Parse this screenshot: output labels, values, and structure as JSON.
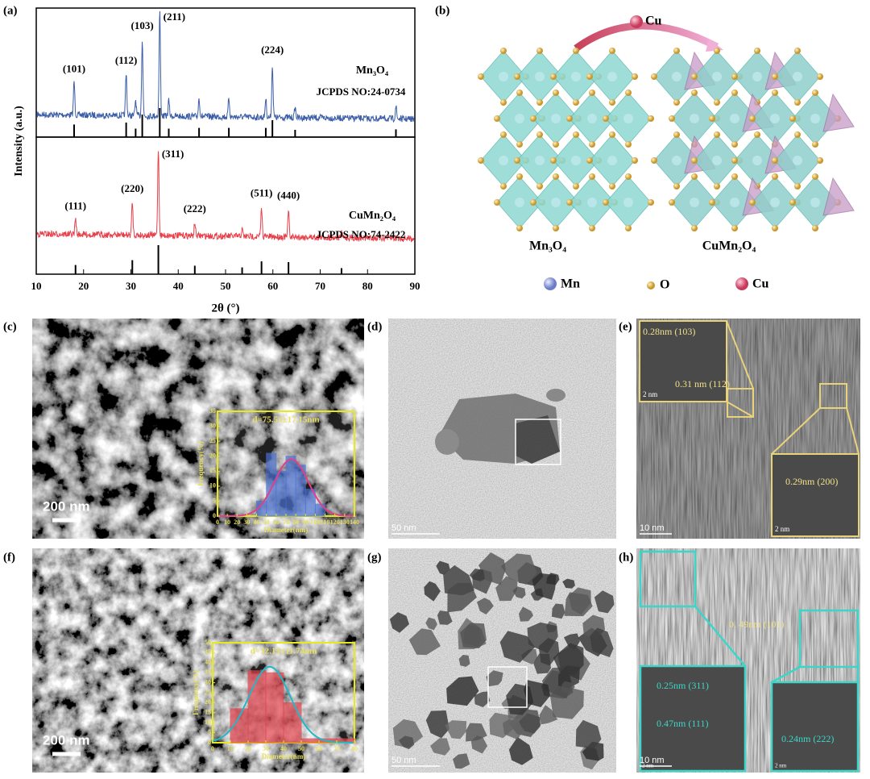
{
  "panels": {
    "a": {
      "label": "(a)",
      "xlabel": "2θ (°)",
      "ylabel": "Intensity (a.u.)",
      "xlim": [
        10,
        90
      ],
      "xticks": [
        10,
        20,
        30,
        40,
        50,
        60,
        70,
        80,
        90
      ],
      "patterns": [
        {
          "name": "Mn₃O₄",
          "card": "JCPDS NO:24-0734",
          "color": "#3c5ea8",
          "peaks": [
            {
              "label": "(101)",
              "x": 18.0,
              "intensity": 32
            },
            {
              "label": "(112)",
              "x": 29.0,
              "intensity": 40
            },
            {
              "label": null,
              "x": 31.0,
              "intensity": 15
            },
            {
              "label": "(103)",
              "x": 32.4,
              "intensity": 73
            },
            {
              "label": "(211)",
              "x": 36.1,
              "intensity": 100
            },
            {
              "label": null,
              "x": 38.0,
              "intensity": 15
            },
            {
              "label": null,
              "x": 44.4,
              "intensity": 18
            },
            {
              "label": null,
              "x": 50.7,
              "intensity": 18
            },
            {
              "label": null,
              "x": 58.5,
              "intensity": 18
            },
            {
              "label": "(224)",
              "x": 59.9,
              "intensity": 50
            },
            {
              "label": null,
              "x": 64.7,
              "intensity": 10
            },
            {
              "label": null,
              "x": 86.0,
              "intensity": 12
            }
          ]
        },
        {
          "name": "CuMn₂O₄",
          "card": "JCPDS NO:74-2422",
          "color": "#e8404a",
          "peaks": [
            {
              "label": "(111)",
              "x": 18.3,
              "intensity": 18
            },
            {
              "label": "(220)",
              "x": 30.3,
              "intensity": 38
            },
            {
              "label": "(311)",
              "x": 35.8,
              "intensity": 100
            },
            {
              "label": "(222)",
              "x": 43.5,
              "intensity": 15
            },
            {
              "label": null,
              "x": 53.5,
              "intensity": 8
            },
            {
              "label": "(511)",
              "x": 57.6,
              "intensity": 33
            },
            {
              "label": "(440)",
              "x": 63.3,
              "intensity": 30
            },
            {
              "label": null,
              "x": 74.5,
              "intensity": 5
            }
          ]
        }
      ]
    },
    "b": {
      "label": "(b)",
      "dopant": "Cu",
      "left": "Mn₃O₄",
      "right": "CuMn₂O₄",
      "legend": [
        "Mn",
        "O",
        "Cu"
      ]
    },
    "c": {
      "label": "(c)",
      "scale": "200 nm",
      "hist": {
        "title": "d=75.53±17.15nm",
        "ylabel": "Frequency(%)",
        "xlabel": "Diameter(nm)",
        "xlim": [
          0,
          140
        ],
        "xticks": [
          0,
          10,
          20,
          30,
          40,
          50,
          60,
          70,
          80,
          90,
          100,
          110,
          120,
          130,
          140
        ],
        "ylim": [
          0,
          35
        ],
        "yticks": [
          0,
          5,
          10,
          15,
          20,
          25,
          30,
          35
        ],
        "bins": [
          40,
          50,
          60,
          70,
          80,
          90,
          100,
          110
        ],
        "counts": [
          5,
          21,
          15,
          20,
          17,
          9,
          4
        ],
        "color": "#4a6fd0",
        "fit": {
          "mean": 75.53,
          "sd": 17.15,
          "peak": 19,
          "color": "#e0408a"
        }
      }
    },
    "d": {
      "label": "(d)",
      "scale": "50 nm"
    },
    "e": {
      "label": "(e)",
      "insets": [
        "0.28nm (103)",
        "0.31 nm (112)",
        "2 nm",
        "0.29nm (200)",
        "2 nm"
      ],
      "scale": "10 nm"
    },
    "f": {
      "label": "(f)",
      "scale": "200 nm",
      "hist": {
        "title": "d=32.13±11.74nm",
        "ylabel": "Frequency(%)",
        "xlabel": "Diameter(nm)",
        "xlim": [
          0,
          80
        ],
        "xticks": [
          0,
          10,
          20,
          30,
          40,
          50,
          60,
          70,
          80
        ],
        "ylim": [
          0,
          50
        ],
        "yticks": [
          0,
          5,
          10,
          15,
          20,
          25,
          30,
          35,
          40,
          45,
          50
        ],
        "bins": [
          10,
          20,
          30,
          40,
          50,
          60,
          70,
          80
        ],
        "counts": [
          17,
          36,
          35,
          20,
          2,
          2,
          2
        ],
        "color": "#e0404a",
        "fit": {
          "mean": 32.13,
          "sd": 11.74,
          "peak": 38,
          "color": "#20b8c8"
        }
      }
    },
    "g": {
      "label": "(g)",
      "scale": "50 nm"
    },
    "h": {
      "label": "(h)",
      "insets": [
        "0. 49nm (101)",
        "0.25nm (311)",
        "0.47nm (111)",
        "0.24nm (222)",
        "2 nm",
        "2 nm"
      ],
      "scale": "10 nm"
    }
  }
}
